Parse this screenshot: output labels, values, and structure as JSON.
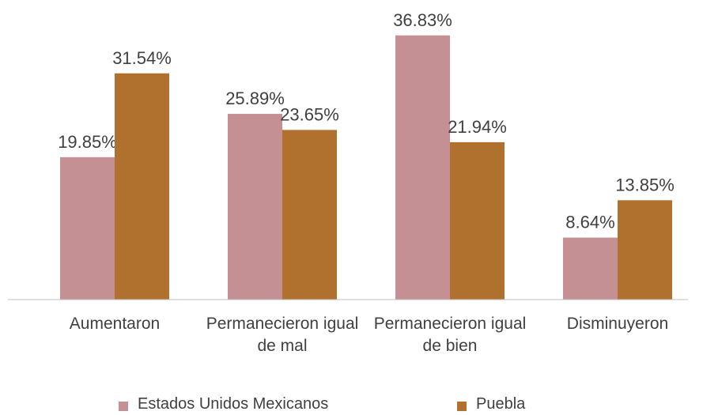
{
  "chart_data": {
    "type": "bar",
    "categories": [
      "Aumentaron",
      "Permanecieron igual de mal",
      "Permanecieron igual de bien",
      "Disminuyeron"
    ],
    "series": [
      {
        "name": "Estados Unidos Mexicanos",
        "color": "#c49094",
        "values": [
          19.85,
          25.89,
          36.83,
          8.64
        ],
        "value_labels": [
          "19.85%",
          "25.89%",
          "36.83%",
          "8.64%"
        ]
      },
      {
        "name": "Puebla",
        "color": "#b0702e",
        "values": [
          31.54,
          23.65,
          21.94,
          13.85
        ],
        "value_labels": [
          "31.54%",
          "23.65%",
          "21.94%",
          "13.85%"
        ]
      }
    ],
    "ylim": [
      0,
      40
    ],
    "legend": "bottom"
  }
}
